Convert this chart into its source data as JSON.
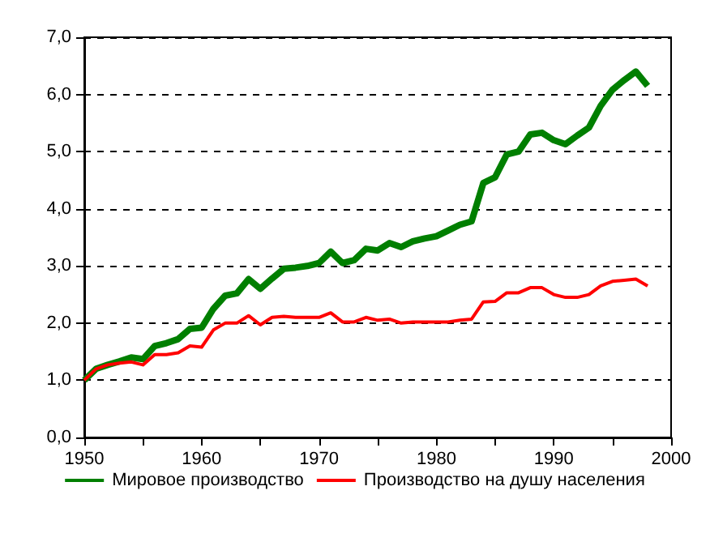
{
  "chart_data": {
    "type": "line",
    "x": [
      1950,
      1951,
      1952,
      1953,
      1954,
      1955,
      1956,
      1957,
      1958,
      1959,
      1960,
      1961,
      1962,
      1963,
      1964,
      1965,
      1966,
      1967,
      1968,
      1969,
      1970,
      1971,
      1972,
      1973,
      1974,
      1975,
      1976,
      1977,
      1978,
      1979,
      1980,
      1981,
      1982,
      1983,
      1984,
      1985,
      1986,
      1987,
      1988,
      1989,
      1990,
      1991,
      1992,
      1993,
      1994,
      1995,
      1996,
      1997,
      1998
    ],
    "series": [
      {
        "name": "Мировое производство",
        "color": "#007f00",
        "values": [
          1.0,
          1.2,
          1.27,
          1.33,
          1.4,
          1.37,
          1.6,
          1.65,
          1.72,
          1.9,
          1.92,
          2.25,
          2.48,
          2.52,
          2.77,
          2.6,
          2.78,
          2.95,
          2.97,
          3.0,
          3.05,
          3.25,
          3.05,
          3.1,
          3.3,
          3.27,
          3.4,
          3.33,
          3.43,
          3.48,
          3.52,
          3.62,
          3.72,
          3.78,
          4.45,
          4.55,
          4.95,
          5.0,
          5.3,
          5.33,
          5.2,
          5.13,
          5.28,
          5.42,
          5.8,
          6.08,
          6.25,
          6.4,
          6.15
        ]
      },
      {
        "name": "Производство на душу населения",
        "color": "#ff0000",
        "values": [
          1.0,
          1.2,
          1.27,
          1.3,
          1.32,
          1.27,
          1.45,
          1.45,
          1.48,
          1.6,
          1.58,
          1.88,
          2.0,
          2.0,
          2.13,
          1.97,
          2.1,
          2.12,
          2.1,
          2.1,
          2.1,
          2.18,
          2.02,
          2.02,
          2.1,
          2.05,
          2.07,
          2.0,
          2.02,
          2.02,
          2.02,
          2.02,
          2.05,
          2.07,
          2.37,
          2.38,
          2.53,
          2.53,
          2.62,
          2.62,
          2.5,
          2.45,
          2.45,
          2.5,
          2.65,
          2.73,
          2.75,
          2.77,
          2.65
        ]
      }
    ],
    "xlim": [
      1950,
      2000
    ],
    "xticks": [
      1950,
      1960,
      1970,
      1980,
      1990,
      2000
    ],
    "ylim": [
      0,
      7
    ],
    "yticks": [
      {
        "value": 0,
        "label": "0,0"
      },
      {
        "value": 1,
        "label": "1,0"
      },
      {
        "value": 2,
        "label": "2,0"
      },
      {
        "value": 3,
        "label": "3,0"
      },
      {
        "value": 4,
        "label": "4,0"
      },
      {
        "value": 5,
        "label": "5,0"
      },
      {
        "value": 6,
        "label": "6,0"
      },
      {
        "value": 7,
        "label": "7,0"
      }
    ],
    "grid": "y",
    "legend": "bottom",
    "marker": "none",
    "line_style": "solid"
  }
}
